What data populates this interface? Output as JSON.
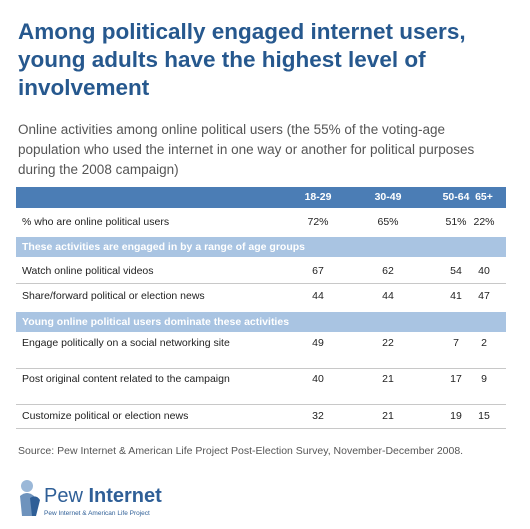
{
  "header": {
    "title": "Among politically engaged internet users, young adults have the highest level of involvement",
    "subtitle": "Online activities among online political users (the 55% of the voting-age population who used the internet in one way or another for political purposes during the 2008 campaign)"
  },
  "table": {
    "columns": [
      "18-29",
      "30-49",
      "50-64",
      "65+"
    ],
    "rows": [
      {
        "label": "% who are online political users",
        "values": [
          "72%",
          "65%",
          "51%",
          "22%"
        ]
      },
      {
        "section": "These activities are engaged in by a range of age groups"
      },
      {
        "label": "Watch online political videos",
        "values": [
          "67",
          "62",
          "54",
          "40"
        ]
      },
      {
        "label": "Share/forward political or election news",
        "values": [
          "44",
          "44",
          "41",
          "47"
        ]
      },
      {
        "section": "Young online political users dominate these activities"
      },
      {
        "label": "Engage politically on a social networking site",
        "values": [
          "49",
          "22",
          "7",
          "2"
        ]
      },
      {
        "label": "Post original content related to the campaign",
        "values": [
          "40",
          "21",
          "17",
          "9"
        ]
      },
      {
        "label": "Customize political or election news",
        "values": [
          "32",
          "21",
          "19",
          "15"
        ]
      }
    ]
  },
  "source": "Source: Pew Internet & American Life Project Post-Election Survey, November-December 2008.",
  "logo": {
    "name_light": "Pew",
    "name_bold": "Internet",
    "tagline": "Pew Internet & American Life Project"
  }
}
